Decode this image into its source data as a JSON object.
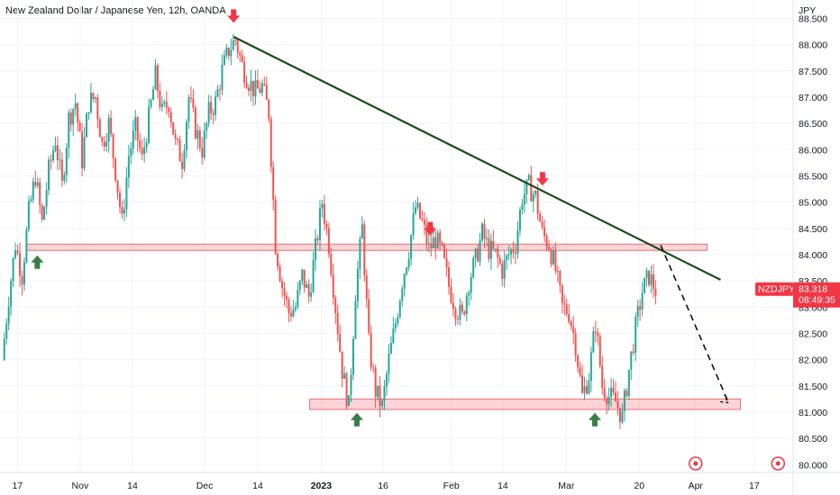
{
  "chart_data": {
    "type": "candlestick",
    "title": "New Zealand Dollar / Japanese Yen, 12h, OANDA",
    "currency": "JPY",
    "symbol": "NZDJPY",
    "last_price": "83.318",
    "countdown": "08:49:35",
    "ylim": [
      79.85,
      88.85
    ],
    "y_ticks": [
      "88.500",
      "88.000",
      "87.500",
      "87.000",
      "86.500",
      "86.000",
      "85.500",
      "85.000",
      "84.500",
      "84.000",
      "83.500",
      "83.000",
      "82.500",
      "82.000",
      "81.500",
      "81.000",
      "80.500",
      "80.000"
    ],
    "x_ticks": [
      {
        "label": "17",
        "bold": false
      },
      {
        "label": "Nov",
        "bold": false
      },
      {
        "label": "14",
        "bold": false
      },
      {
        "label": "Dec",
        "bold": false
      },
      {
        "label": "14",
        "bold": false
      },
      {
        "label": "2023",
        "bold": true
      },
      {
        "label": "16",
        "bold": false
      },
      {
        "label": "Feb",
        "bold": false
      },
      {
        "label": "14",
        "bold": false
      },
      {
        "label": "Mar",
        "bold": false
      },
      {
        "label": "20",
        "bold": false
      },
      {
        "label": "Apr",
        "bold": false
      },
      {
        "label": "17",
        "bold": false
      }
    ],
    "close_path": [
      82.0,
      83.2,
      84.2,
      83.6,
      84.8,
      85.5,
      84.6,
      85.6,
      86.2,
      85.3,
      86.6,
      86.9,
      85.8,
      86.9,
      87.0,
      86.1,
      86.5,
      85.6,
      84.6,
      85.9,
      86.4,
      85.8,
      86.6,
      87.4,
      86.7,
      86.9,
      86.1,
      85.8,
      87.0,
      86.4,
      86.0,
      86.7,
      86.9,
      87.5,
      87.9,
      88.1,
      87.6,
      87.3,
      87.1,
      87.2,
      86.7,
      84.2,
      83.4,
      82.9,
      83.0,
      83.6,
      83.2,
      84.1,
      85.0,
      84.2,
      83.0,
      81.8,
      81.1,
      83.3,
      84.5,
      82.3,
      81.4,
      81.1,
      82.0,
      82.7,
      83.5,
      84.1,
      84.9,
      84.6,
      84.1,
      84.3,
      84.0,
      83.4,
      83.0,
      82.8,
      83.5,
      83.9,
      84.4,
      84.1,
      84.0,
      83.7,
      84.0,
      84.2,
      85.1,
      85.3,
      85.1,
      84.4,
      84.2,
      83.7,
      83.0,
      82.9,
      82.3,
      81.3,
      81.7,
      82.7,
      81.5,
      81.3,
      81.2,
      80.9,
      81.8,
      82.6,
      83.3,
      83.6,
      83.318
    ],
    "trendline": {
      "start": [
        0.2945,
        88.15
      ],
      "end": [
        0.9085,
        83.52
      ]
    },
    "support_zone": {
      "from": [
        0.3905,
        81.05
      ],
      "to": [
        0.9335,
        81.25
      ]
    },
    "resistance_zone": {
      "from": [
        0.033,
        84.08
      ],
      "to": [
        0.8915,
        84.2
      ]
    },
    "projection": [
      [
        0.833,
        84.18
      ],
      [
        0.9185,
        81.18
      ]
    ],
    "markers": [
      {
        "type": "down",
        "x": 0.2945,
        "y": 88.5
      },
      {
        "type": "down",
        "x": 0.5425,
        "y": 84.45
      },
      {
        "type": "down",
        "x": 0.684,
        "y": 85.4
      },
      {
        "type": "up",
        "x": 0.047,
        "y": 83.9
      },
      {
        "type": "up",
        "x": 0.45,
        "y": 80.9
      },
      {
        "type": "up",
        "x": 0.75,
        "y": 80.9
      }
    ]
  }
}
